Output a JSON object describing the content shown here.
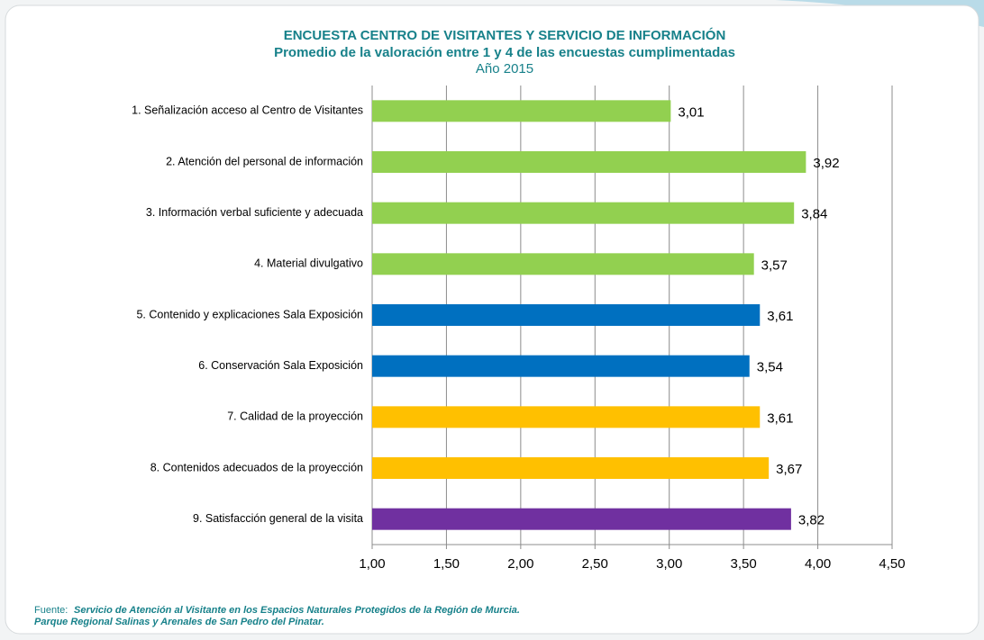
{
  "chart_data": {
    "type": "hbar",
    "title": "ENCUESTA CENTRO DE VISITANTES Y SERVICIO DE INFORMACIÓN",
    "subtitle": "Promedio de la valoración entre 1 y 4 de las encuestas cumplimentadas",
    "year": "Año 2015",
    "categories": [
      "1. Señalización acceso al Centro de Visitantes",
      "2. Atención del personal de información",
      "3. Información verbal suficiente y adecuada",
      "4. Material divulgativo",
      "5. Contenido y explicaciones Sala Exposición",
      "6. Conservación Sala Exposición",
      "7. Calidad de la proyección",
      "8. Contenidos adecuados de la proyección",
      "9. Satisfacción general de la visita"
    ],
    "values": [
      3.01,
      3.92,
      3.84,
      3.57,
      3.61,
      3.54,
      3.61,
      3.67,
      3.82
    ],
    "value_labels": [
      "3,01",
      "3,92",
      "3,84",
      "3,57",
      "3,61",
      "3,54",
      "3,61",
      "3,67",
      "3,82"
    ],
    "colors": [
      "#92d050",
      "#92d050",
      "#92d050",
      "#92d050",
      "#0070c0",
      "#0070c0",
      "#ffc000",
      "#ffc000",
      "#7030a0"
    ],
    "xlim": [
      1,
      4.5
    ],
    "xticks": [
      {
        "value": 1,
        "label": "1,00"
      },
      {
        "value": 1.5,
        "label": "1,50"
      },
      {
        "value": 2,
        "label": "2,00"
      },
      {
        "value": 2.5,
        "label": "2,50"
      },
      {
        "value": 3,
        "label": "3,00"
      },
      {
        "value": 3.5,
        "label": "3,50"
      },
      {
        "value": 4,
        "label": "4,00"
      },
      {
        "value": 4.5,
        "label": "4,50"
      }
    ],
    "grid": true,
    "source_prefix": "Fuente:",
    "source_lines": [
      "Servicio de  Atención al Visitante en los Espacios Naturales Protegidos de la Región de Murcia.",
      "Parque Regional  Salinas y Arenales de San Pedro del Pinatar."
    ]
  }
}
